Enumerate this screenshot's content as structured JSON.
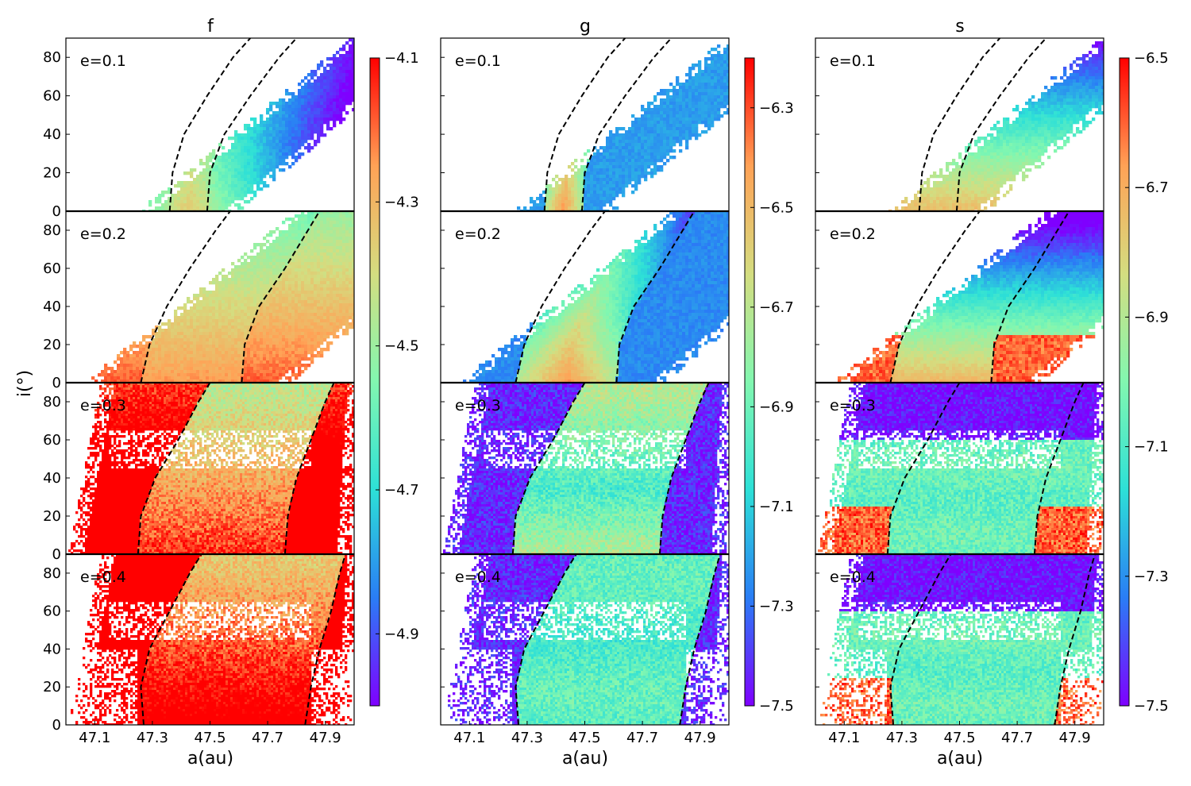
{
  "figure": {
    "ylabel": "i(°)",
    "xlabel": "a(au)"
  },
  "chart_data": {
    "type": "heatmap",
    "columns": [
      {
        "title": "f",
        "colorbar": {
          "ticks": [
            "−4.1",
            "−4.3",
            "−4.5",
            "−4.7",
            "−4.9"
          ],
          "range": [
            -5.0,
            -4.1
          ]
        }
      },
      {
        "title": "g",
        "colorbar": {
          "ticks": [
            "−6.3",
            "−6.5",
            "−6.7",
            "−6.9",
            "−7.1",
            "−7.3",
            "−7.5"
          ],
          "range": [
            -7.5,
            -6.2
          ]
        }
      },
      {
        "title": "s",
        "colorbar": {
          "ticks": [
            "−6.5",
            "−6.7",
            "−6.9",
            "−7.1",
            "−7.3",
            "−7.5"
          ],
          "range": [
            -7.5,
            -6.5
          ]
        }
      }
    ],
    "rows": [
      {
        "label": "e=0.1"
      },
      {
        "label": "e=0.2"
      },
      {
        "label": "e=0.3"
      },
      {
        "label": "e=0.4"
      }
    ],
    "x_ticks": [
      "47.1",
      "47.3",
      "47.5",
      "47.7",
      "47.9"
    ],
    "y_ticks": [
      "0",
      "20",
      "40",
      "60",
      "80"
    ],
    "xlim": [
      47.0,
      48.0
    ],
    "ylim": [
      0,
      90
    ],
    "colormap": "rainbow",
    "colormap_stops": [
      "#7f00ff",
      "#2a7df5",
      "#2de0d7",
      "#82f7b0",
      "#d4dd80",
      "#ffa256",
      "#ff0000"
    ],
    "boundary_curves": [
      [
        [
          [
            47.36,
            0
          ],
          [
            47.37,
            20
          ],
          [
            47.41,
            40
          ],
          [
            47.49,
            60
          ],
          [
            47.58,
            80
          ],
          [
            47.64,
            90
          ]
        ],
        [
          [
            47.49,
            0
          ],
          [
            47.5,
            20
          ],
          [
            47.55,
            40
          ],
          [
            47.64,
            60
          ],
          [
            47.74,
            80
          ],
          [
            47.8,
            90
          ]
        ]
      ],
      [
        [
          [
            47.26,
            0
          ],
          [
            47.29,
            20
          ],
          [
            47.35,
            40
          ],
          [
            47.43,
            60
          ],
          [
            47.52,
            80
          ],
          [
            47.57,
            90
          ]
        ],
        [
          [
            47.61,
            0
          ],
          [
            47.62,
            20
          ],
          [
            47.67,
            40
          ],
          [
            47.76,
            60
          ],
          [
            47.84,
            80
          ],
          [
            47.88,
            90
          ]
        ]
      ],
      [
        [
          [
            47.25,
            0
          ],
          [
            47.26,
            20
          ],
          [
            47.31,
            40
          ],
          [
            47.39,
            60
          ],
          [
            47.46,
            80
          ],
          [
            47.5,
            90
          ]
        ],
        [
          [
            47.76,
            0
          ],
          [
            47.77,
            20
          ],
          [
            47.8,
            40
          ],
          [
            47.85,
            60
          ],
          [
            47.9,
            80
          ],
          [
            47.93,
            90
          ]
        ]
      ],
      [
        [
          [
            47.27,
            0
          ],
          [
            47.26,
            20
          ],
          [
            47.29,
            40
          ],
          [
            47.36,
            60
          ],
          [
            47.43,
            80
          ],
          [
            47.47,
            90
          ]
        ],
        [
          [
            47.83,
            0
          ],
          [
            47.85,
            20
          ],
          [
            47.88,
            40
          ],
          [
            47.92,
            60
          ],
          [
            47.95,
            80
          ],
          [
            47.97,
            90
          ]
        ]
      ]
    ]
  }
}
